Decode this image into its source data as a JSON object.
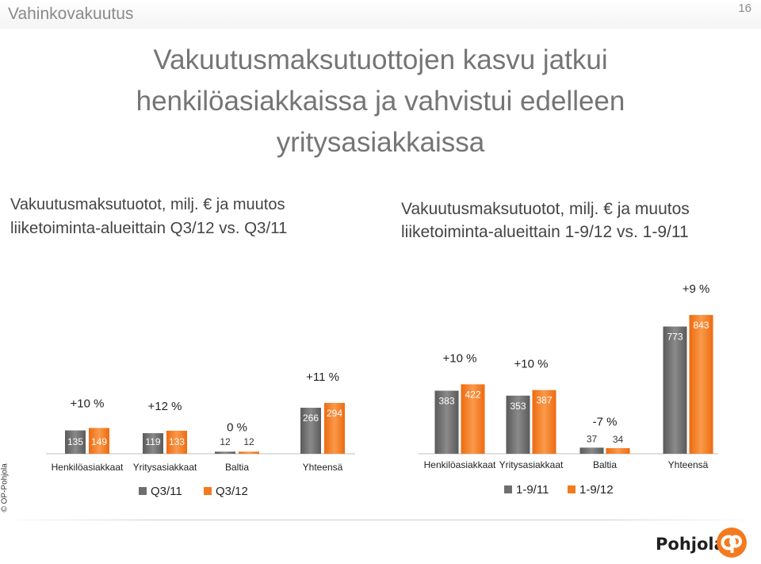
{
  "header": {
    "section": "Vahinkovakuutus",
    "page_number": "16"
  },
  "title": {
    "lines": [
      "Vakuutusmaksutuottojen kasvu jatkui",
      "henkilöasiakkaissa ja vahvistui edelleen",
      "yritysasiakkaissa"
    ]
  },
  "subtitles": {
    "left": [
      "Vakuutusmaksutuotot, milj. € ja muutos",
      "liiketoiminta-alueittain Q3/12 vs. Q3/11"
    ],
    "right": [
      "Vakuutusmaksutuotot, milj. € ja muutos",
      "liiketoiminta-alueittain 1-9/12 vs. 1-9/11"
    ]
  },
  "colors": {
    "previous_period": "#6e6e6e",
    "current_period": "#f47a1f",
    "brand_orange": "#f47a1f"
  },
  "chart_data": [
    {
      "type": "bar",
      "title": "Vakuutusmaksutuotot, milj. € ja muutos liiketoiminta-alueittain Q3/12 vs. Q3/11",
      "categories": [
        "Henkilöasiakkaat",
        "Yritysasiakkaat",
        "Baltia",
        "Yhteensä"
      ],
      "series": [
        {
          "name": "Q3/11",
          "values": [
            135,
            119,
            12,
            266
          ]
        },
        {
          "name": "Q3/12",
          "values": [
            149,
            133,
            12,
            294
          ]
        }
      ],
      "changes": [
        "+10 %",
        "+12 %",
        "0 %",
        "+11 %"
      ],
      "ylim": [
        0,
        900
      ],
      "legend": "bottom"
    },
    {
      "type": "bar",
      "title": "Vakuutusmaksutuotot, milj. € ja muutos liiketoiminta-alueittain 1-9/12 vs. 1-9/11",
      "categories": [
        "Henkilöasiakkaat",
        "Yritysasiakkaat",
        "Baltia",
        "Yhteensä"
      ],
      "series": [
        {
          "name": "1-9/11",
          "values": [
            383,
            353,
            37,
            773
          ]
        },
        {
          "name": "1-9/12",
          "values": [
            422,
            387,
            34,
            843
          ]
        }
      ],
      "changes": [
        "+10 %",
        "+10 %",
        "-7 %",
        "+9 %"
      ],
      "ylim": [
        0,
        900
      ],
      "legend": "bottom"
    }
  ],
  "footer": {
    "copyright": "© OP-Pohjola",
    "brand": "Pohjola",
    "logo": "op-logo-icon"
  }
}
